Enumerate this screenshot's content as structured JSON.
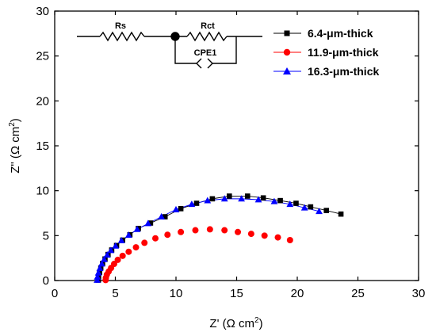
{
  "chart_data": {
    "type": "scatter",
    "xlabel": "Z' (Ω cm²)",
    "ylabel": "Z\" (Ω cm²)",
    "xlabel_parts": {
      "main": "Z' (Ω cm",
      "sup": "2",
      "end": ")"
    },
    "ylabel_parts": {
      "main": "Z\" (Ω cm",
      "sup": "2",
      "end": ")"
    },
    "xlim": [
      0,
      30
    ],
    "ylim": [
      0,
      30
    ],
    "xticks": [
      0,
      5,
      10,
      15,
      20,
      25,
      30
    ],
    "yticks": [
      0,
      5,
      10,
      15,
      20,
      25,
      30
    ],
    "grid": false,
    "legend_position": "top-right",
    "series": [
      {
        "name": "6.4-μm-thick",
        "marker": "square",
        "color": "#000000",
        "x": [
          3.6,
          3.62,
          3.7,
          3.8,
          3.95,
          4.15,
          4.4,
          4.7,
          5.1,
          5.6,
          6.2,
          6.9,
          7.9,
          9.1,
          10.4,
          11.7,
          13.0,
          14.4,
          15.9,
          17.2,
          18.6,
          19.9,
          21.1,
          22.4,
          23.6
        ],
        "y": [
          0.05,
          0.4,
          0.9,
          1.4,
          1.9,
          2.4,
          2.9,
          3.4,
          3.9,
          4.5,
          5.1,
          5.8,
          6.4,
          7.1,
          8.0,
          8.6,
          9.1,
          9.4,
          9.4,
          9.2,
          8.9,
          8.6,
          8.2,
          7.8,
          7.4
        ]
      },
      {
        "name": "11.9-μm-thick",
        "marker": "circle",
        "color": "#ff0000",
        "x": [
          4.2,
          4.22,
          4.3,
          4.45,
          4.65,
          4.9,
          5.2,
          5.6,
          6.1,
          6.7,
          7.4,
          8.3,
          9.3,
          10.4,
          11.6,
          12.8,
          14.0,
          15.1,
          16.2,
          17.3,
          18.4,
          19.4
        ],
        "y": [
          0.05,
          0.3,
          0.65,
          1.0,
          1.4,
          1.85,
          2.3,
          2.75,
          3.2,
          3.7,
          4.2,
          4.7,
          5.1,
          5.4,
          5.6,
          5.7,
          5.6,
          5.4,
          5.2,
          5.0,
          4.8,
          4.5
        ]
      },
      {
        "name": "16.3-μm-thick",
        "marker": "triangle",
        "color": "#0000ff",
        "x": [
          3.5,
          3.52,
          3.6,
          3.72,
          3.88,
          4.08,
          4.33,
          4.63,
          5.02,
          5.5,
          6.1,
          6.8,
          7.7,
          8.8,
          10.0,
          11.3,
          12.6,
          14.0,
          15.4,
          16.8,
          18.1,
          19.4,
          20.6,
          21.8
        ],
        "y": [
          0.05,
          0.4,
          0.85,
          1.35,
          1.85,
          2.35,
          2.85,
          3.35,
          3.85,
          4.45,
          5.05,
          5.7,
          6.35,
          7.1,
          7.9,
          8.5,
          8.9,
          9.1,
          9.1,
          9.0,
          8.8,
          8.5,
          8.1,
          7.7
        ]
      }
    ],
    "inset_circuit": {
      "labels": {
        "rs": "Rs",
        "rct": "Rct",
        "cpe": "CPE1"
      }
    }
  }
}
